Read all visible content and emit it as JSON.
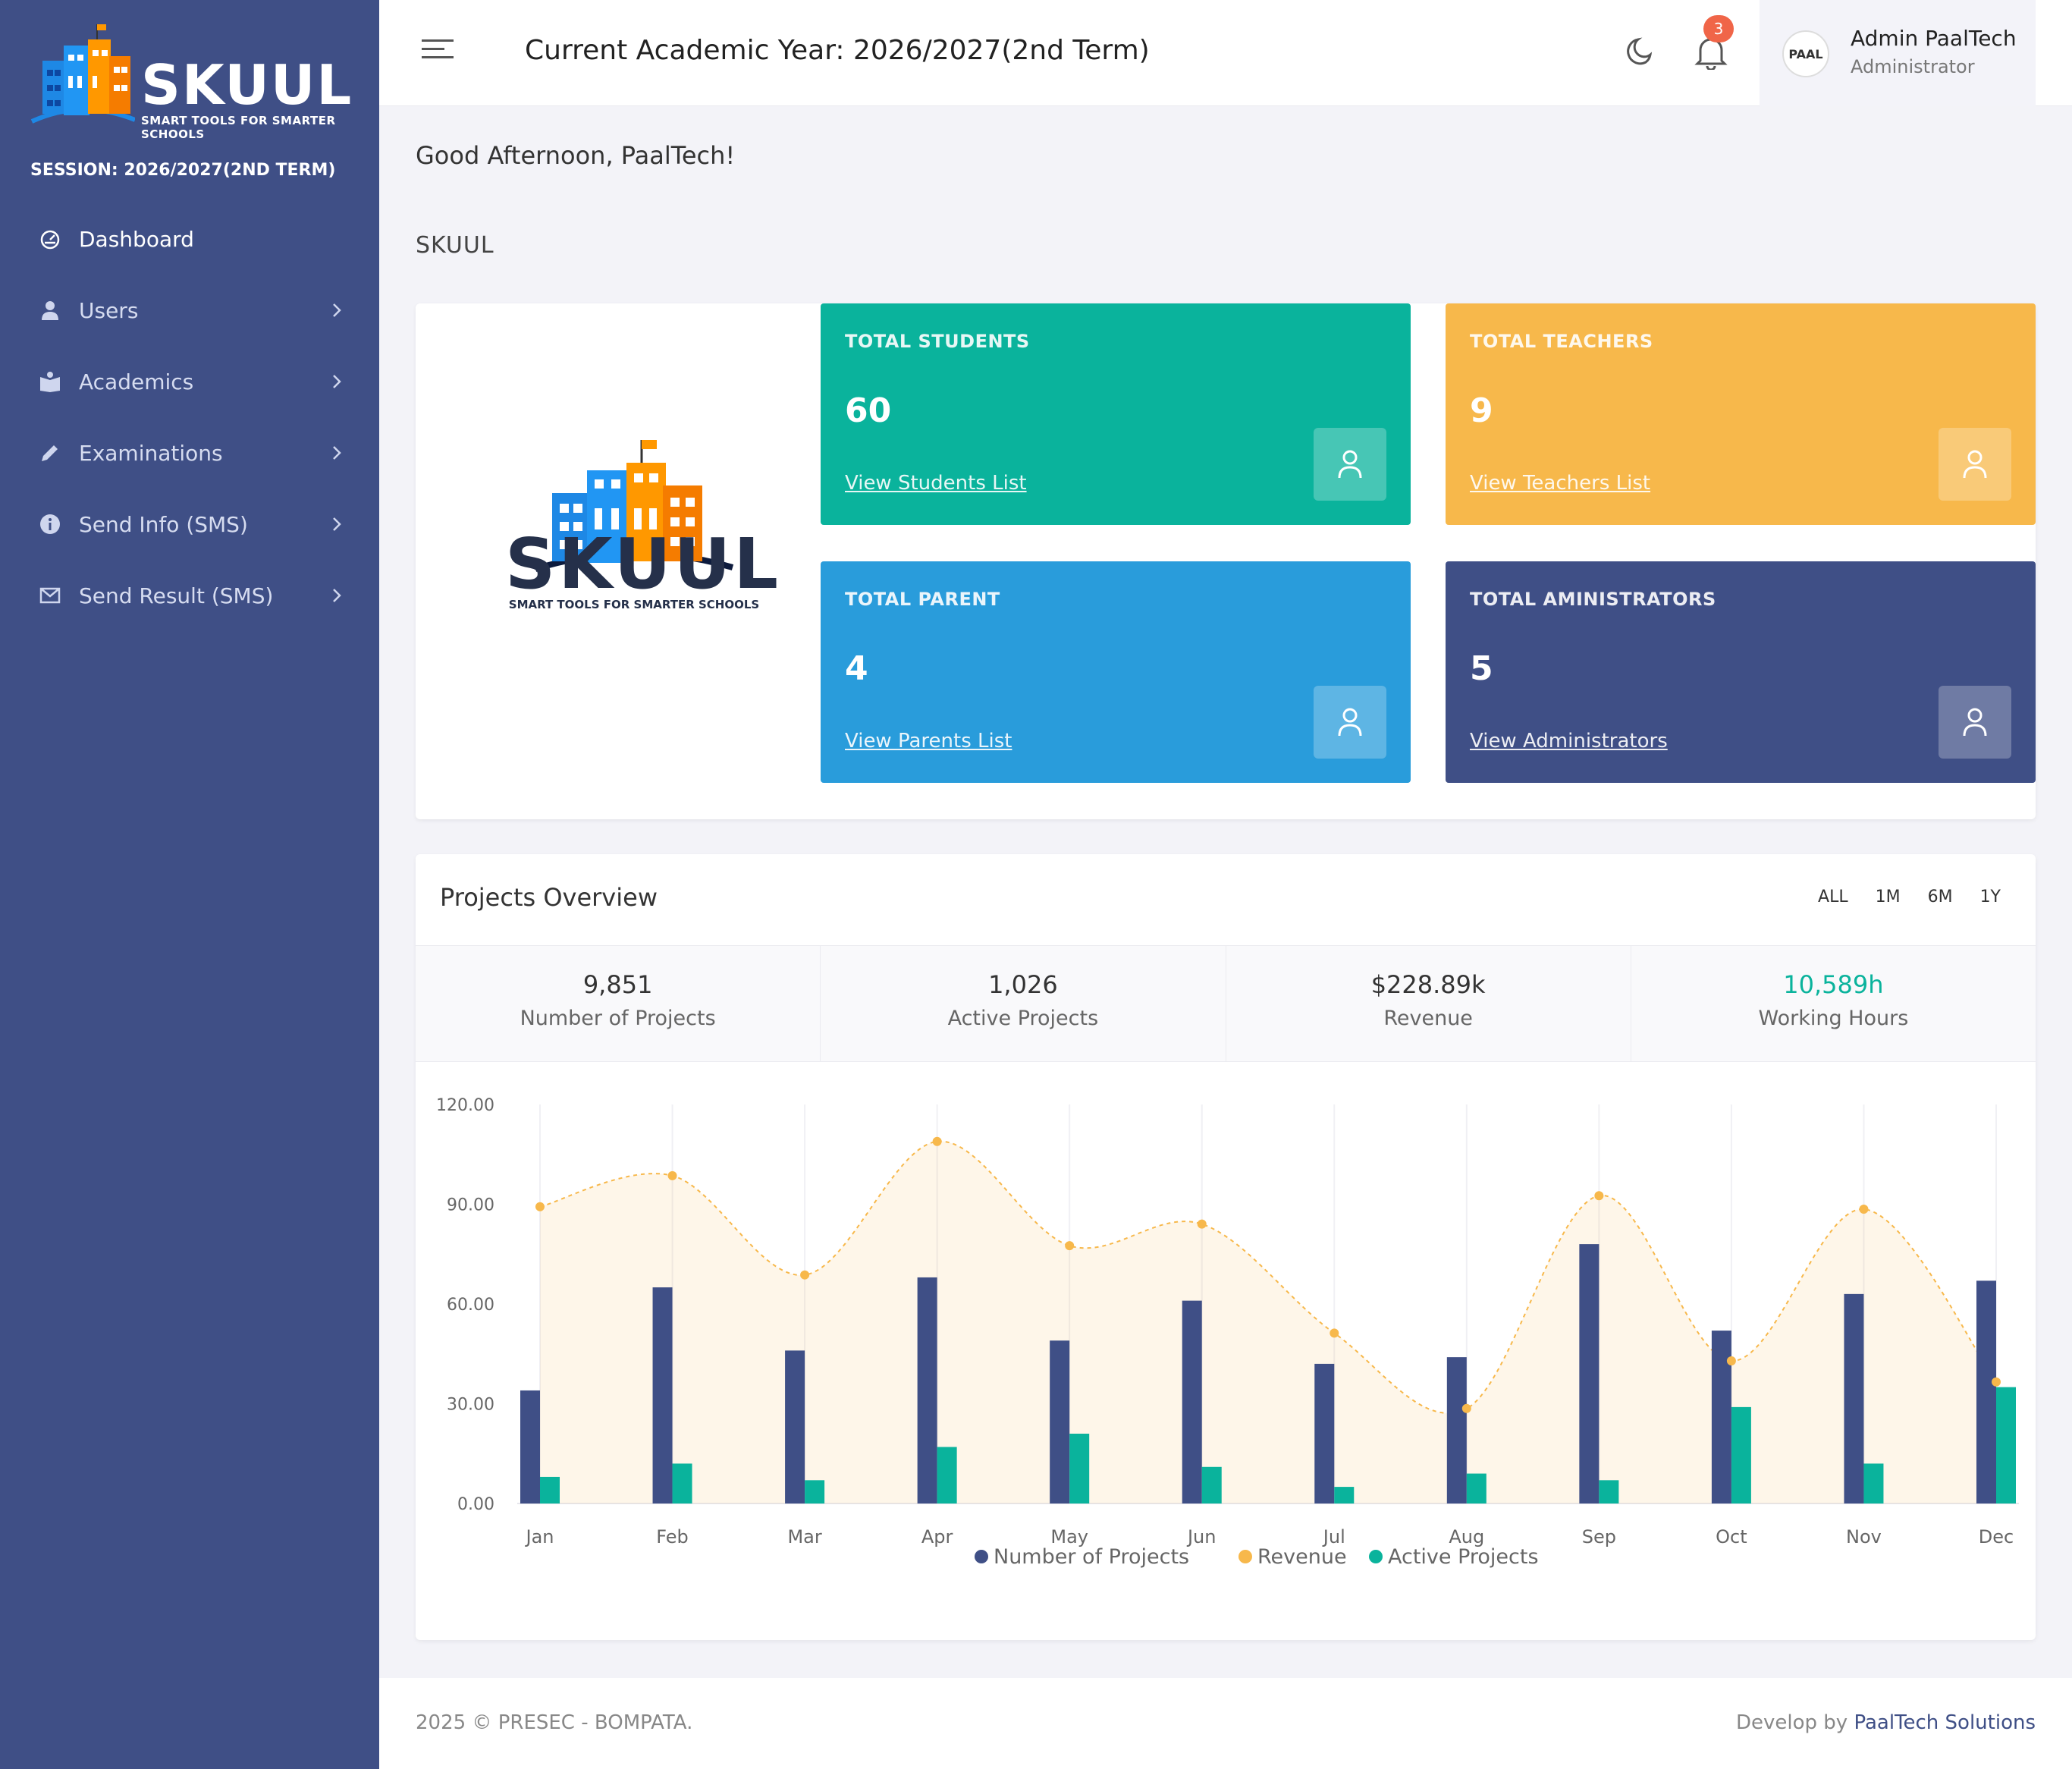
{
  "sidebar": {
    "logo_text": "SKUUL",
    "logo_tagline": "SMART TOOLS FOR SMARTER SCHOOLS",
    "session": "SESSION: 2026/2027(2ND TERM)",
    "items": [
      {
        "label": "Dashboard",
        "icon": "dashboard-icon",
        "active": true
      },
      {
        "label": "Users",
        "icon": "user-icon"
      },
      {
        "label": "Academics",
        "icon": "book-icon"
      },
      {
        "label": "Examinations",
        "icon": "pencil-icon"
      },
      {
        "label": "Send Info (SMS)",
        "icon": "info-icon"
      },
      {
        "label": "Send Result (SMS)",
        "icon": "mail-icon"
      }
    ]
  },
  "header": {
    "title": "Current Academic Year: 2026/2027(2nd Term)",
    "notifications": "3",
    "user_name": "Admin PaalTech",
    "user_role": "Administrator",
    "avatar_text": "PAAL"
  },
  "greeting": "Good Afternoon, PaalTech!",
  "section_title": "SKUUL",
  "school": {
    "name": "SKUUL",
    "tagline": "SMART TOOLS FOR SMARTER SCHOOLS"
  },
  "stats": [
    {
      "label": "TOTAL STUDENTS",
      "value": "60",
      "link": "View Students List",
      "color": "#0ab39c"
    },
    {
      "label": "TOTAL TEACHERS",
      "value": "9",
      "link": "View Teachers List",
      "color": "#f7b84b"
    },
    {
      "label": "TOTAL PARENT",
      "value": "4",
      "link": "View Parents List",
      "color": "#299cdb"
    },
    {
      "label": "TOTAL AMINISTRATORS",
      "value": "5",
      "link": "View Administrators",
      "color": "#3f4f86"
    }
  ],
  "projects": {
    "title": "Projects Overview",
    "filters": [
      "ALL",
      "1M",
      "6M",
      "1Y"
    ],
    "summary": [
      {
        "value": "9,851",
        "label": "Number of Projects"
      },
      {
        "value": "1,026",
        "label": "Active Projects"
      },
      {
        "value": "$228.89k",
        "label": "Revenue"
      },
      {
        "value": "10,589h",
        "label": "Working Hours"
      }
    ]
  },
  "chart_data": {
    "type": "bar",
    "categories": [
      "Jan",
      "Feb",
      "Mar",
      "Apr",
      "May",
      "Jun",
      "Jul",
      "Aug",
      "Sep",
      "Oct",
      "Nov",
      "Dec"
    ],
    "y_ticks": [
      "0.00",
      "30.00",
      "60.00",
      "90.00",
      "120.00"
    ],
    "ylim": [
      0,
      120
    ],
    "series": [
      {
        "name": "Number of Projects",
        "type": "bar",
        "color": "#3f4f86",
        "values": [
          34,
          65,
          46,
          68,
          49,
          61,
          42,
          44,
          78,
          52,
          63,
          67
        ]
      },
      {
        "name": "Revenue",
        "type": "area",
        "color": "#f7b84b",
        "values": [
          89.25,
          98.58,
          68.74,
          108.87,
          77.54,
          84.03,
          51.24,
          28.57,
          92.57,
          42.89,
          88.51,
          36.57
        ]
      },
      {
        "name": "Active Projects",
        "type": "bar",
        "color": "#0ab39c",
        "values": [
          8,
          12,
          7,
          17,
          21,
          11,
          5,
          9,
          7,
          29,
          12,
          35
        ]
      }
    ],
    "grid": true,
    "legend": "bottom"
  },
  "footer": {
    "left": "2025 © PRESEC - BOMPATA.",
    "right_prefix": "Develop by ",
    "right_brand": "PaalTech Solutions"
  }
}
